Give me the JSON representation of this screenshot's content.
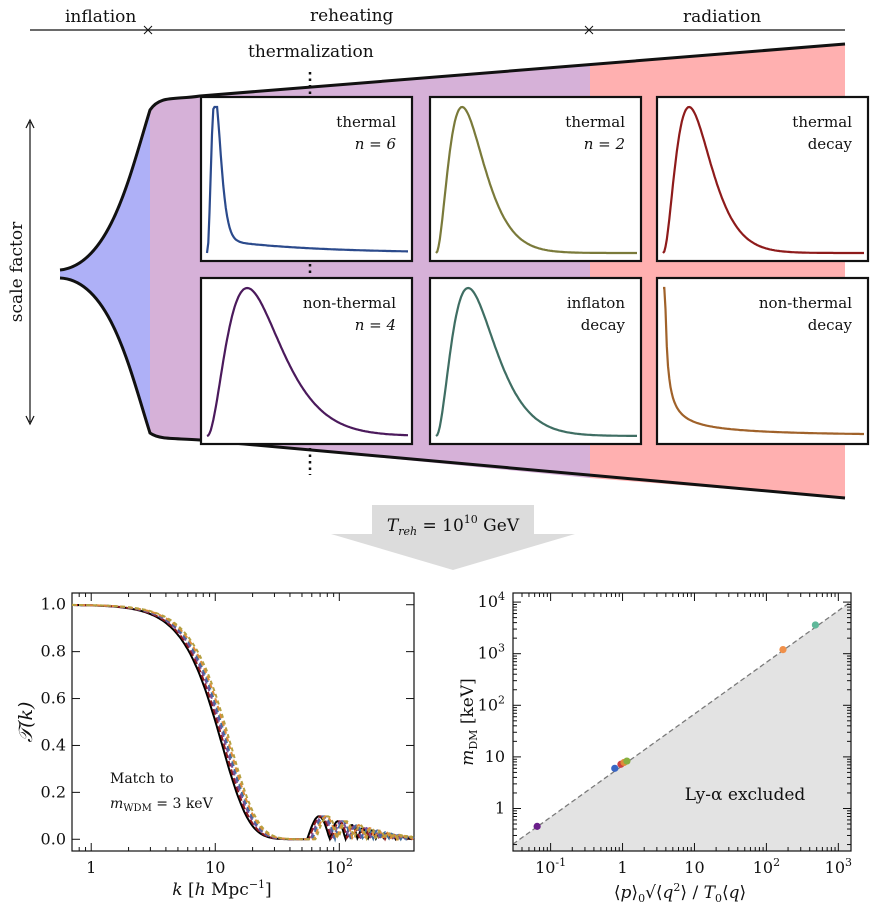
{
  "timeline": {
    "phases": [
      "inflation",
      "reheating",
      "radiation"
    ],
    "thermalization": "thermalization",
    "scale_axis": "scale factor"
  },
  "panels": [
    {
      "line1": "thermal",
      "line2": "n = 6",
      "color": "#2b4a8c"
    },
    {
      "line1": "thermal",
      "line2": "n = 2",
      "color": "#7a7a3a"
    },
    {
      "line1": "thermal",
      "line2": "decay",
      "color": "#8e1b1b"
    },
    {
      "line1": "non-thermal",
      "line2": "n = 4",
      "color": "#4b1a5c"
    },
    {
      "line1": "inflaton",
      "line2": "decay",
      "color": "#3f6e63"
    },
    {
      "line1": "non-thermal",
      "line2": "decay",
      "color": "#a0622a"
    }
  ],
  "arrow_label": "T_reh = 10^10 GeV",
  "region_colors": {
    "inflation": "#aeb0f7",
    "reheating": "#d6b1d8",
    "radiation": "#ffb0b0"
  },
  "chart_data": [
    {
      "type": "line",
      "xlabel": "k [h Mpc^-1]",
      "ylabel": "T(k)",
      "xscale": "log",
      "xlim": [
        0.7,
        400
      ],
      "ylim": [
        -0.05,
        1.05
      ],
      "xticks": [
        "1",
        "10",
        "10^2"
      ],
      "yticks": [
        "0.0",
        "0.2",
        "0.4",
        "0.6",
        "0.8",
        "1.0"
      ],
      "annotation": [
        "Match to",
        "m_WDM = 3 keV"
      ],
      "series_colors": [
        "#000000",
        "#8e1b1b",
        "#7a4e9a",
        "#3f6e9e",
        "#e08a3a",
        "#b5a040"
      ]
    },
    {
      "type": "scatter",
      "xlabel": "⟨p⟩0 √⟨q²⟩ / T0⟨q⟩",
      "ylabel": "m_DM [keV]",
      "xscale": "log",
      "yscale": "log",
      "xlim": [
        0.03,
        1500
      ],
      "ylim": [
        0.15,
        15000
      ],
      "xticks": [
        "10^-1",
        "1",
        "10",
        "10^2",
        "10^3"
      ],
      "yticks": [
        "1",
        "10",
        "10^2",
        "10^3",
        "10^4"
      ],
      "region_label": "Ly-α excluded",
      "points": [
        {
          "x": 0.065,
          "y": 0.45,
          "color": "#6a1f8a"
        },
        {
          "x": 0.78,
          "y": 6.0,
          "color": "#3a66c4"
        },
        {
          "x": 0.95,
          "y": 7.2,
          "color": "#d04040"
        },
        {
          "x": 1.05,
          "y": 7.8,
          "color": "#e08a3a"
        },
        {
          "x": 1.15,
          "y": 8.3,
          "color": "#88b040"
        },
        {
          "x": 170,
          "y": 1200,
          "color": "#f0904a"
        },
        {
          "x": 480,
          "y": 3600,
          "color": "#5fb89a"
        }
      ]
    }
  ]
}
